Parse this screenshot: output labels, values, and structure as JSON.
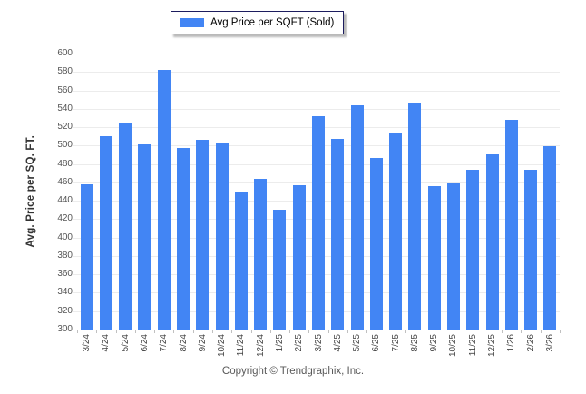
{
  "legend": {
    "label": "Avg Price per SQFT (Sold)",
    "swatch_color": "#4285f4"
  },
  "footer": {
    "copyright": "Copyright © Trendgraphix, Inc."
  },
  "chart_data": {
    "type": "bar",
    "title": "",
    "xlabel": "",
    "ylabel": "Avg. Price per SQ. FT.",
    "ylim": [
      300,
      600
    ],
    "ytick_step": 20,
    "yticks": [
      600,
      580,
      560,
      540,
      520,
      500,
      480,
      460,
      440,
      420,
      400,
      380,
      360,
      340,
      320,
      300
    ],
    "grid": "horizontal",
    "legend_position": "top-center",
    "bar_color": "#4285f4",
    "gridline_color": "#ececec",
    "axis_color": "#b3b3b3",
    "categories": [
      "3/24",
      "4/24",
      "5/24",
      "6/24",
      "7/24",
      "8/24",
      "9/24",
      "10/24",
      "11/24",
      "12/24",
      "1/25",
      "2/25",
      "3/25",
      "4/25",
      "5/25",
      "6/25",
      "7/25",
      "8/25",
      "9/25",
      "10/25",
      "11/25",
      "12/25",
      "1/26",
      "2/26",
      "3/26"
    ],
    "series": [
      {
        "name": "Avg Price per SQFT (Sold)",
        "values": [
          458,
          510,
          525,
          501,
          582,
          497,
          506,
          503,
          450,
          464,
          430,
          457,
          532,
          507,
          544,
          487,
          514,
          547,
          456,
          459,
          474,
          490,
          528,
          474,
          499
        ]
      }
    ]
  }
}
